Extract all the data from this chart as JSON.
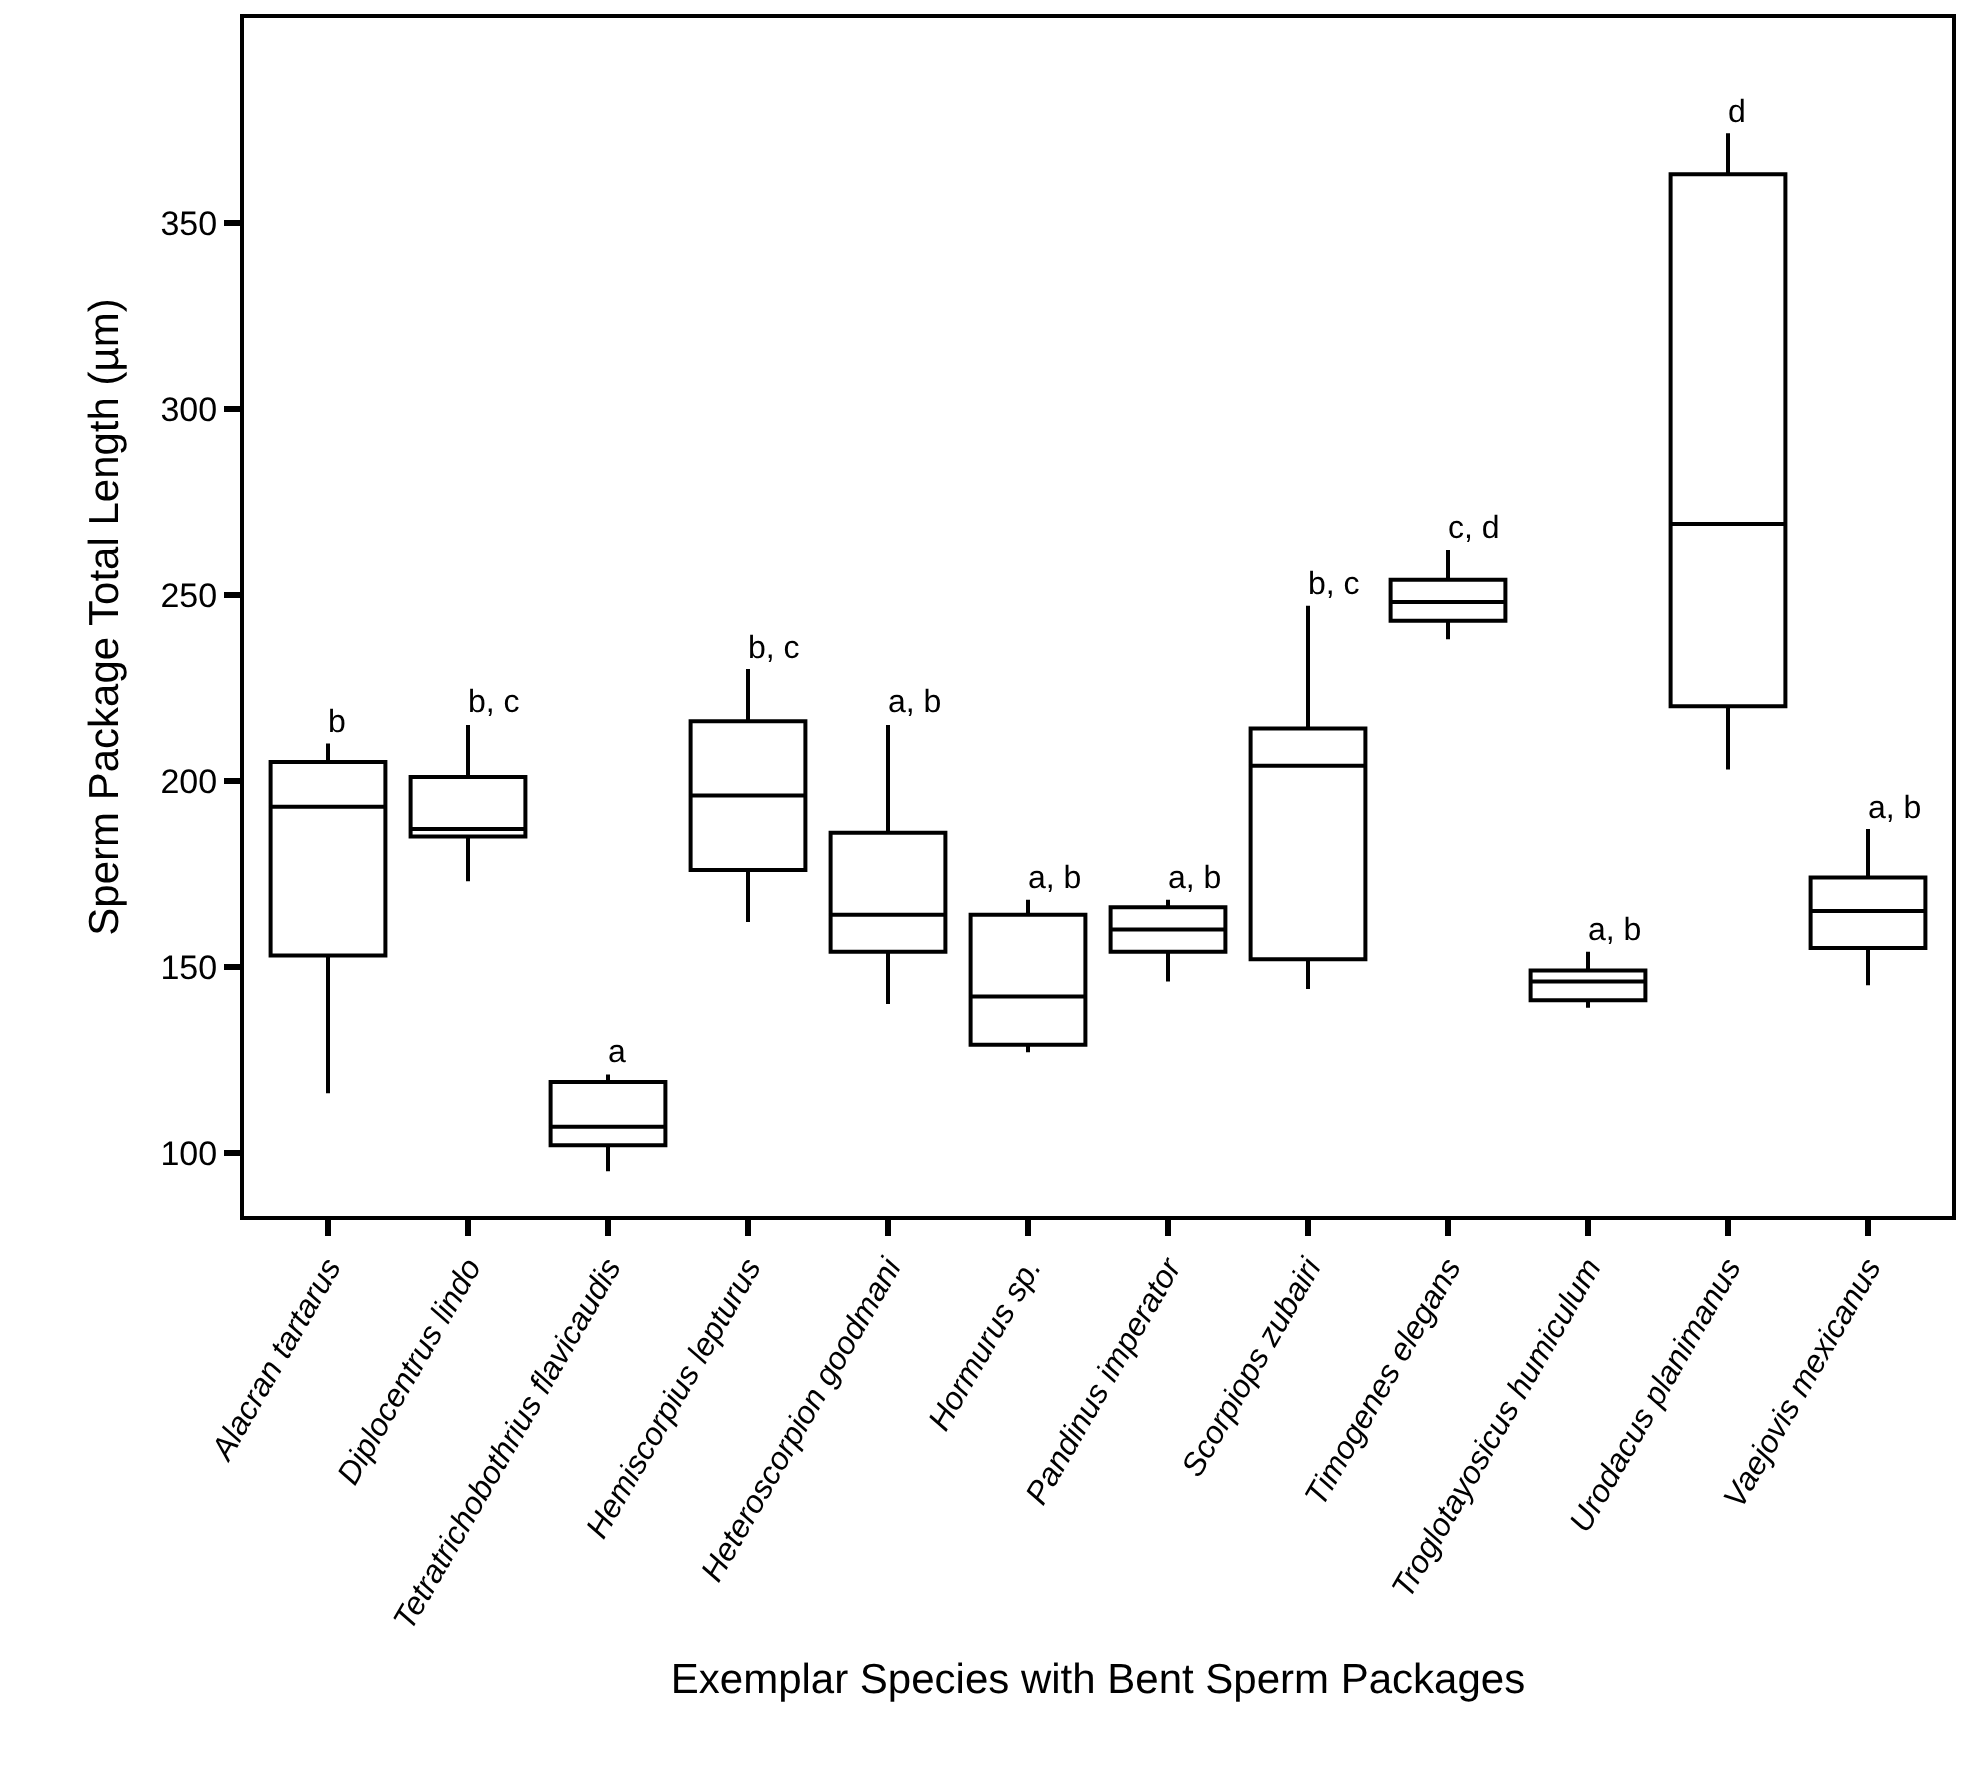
{
  "chart_data": {
    "type": "box",
    "xlabel": "Exemplar Species with Bent Sperm Packages",
    "ylabel": "Sperm Package Total Length (µm)",
    "categories": [
      "Alacran tartarus",
      "Diplocentrus lindo",
      "Tetratrichobothrius flavicaudis",
      "Hemiscorpius lepturus",
      "Heteroscorpion goodmani",
      "Hormurus sp.",
      "Pandinus imperator",
      "Scorpiops zubairi",
      "Timogenes elegans",
      "Troglotayosicus humiculum",
      "Urodacus planimanus",
      "Vaejovis mexicanus"
    ],
    "color": "#000000",
    "boxes": [
      {
        "low": 116,
        "q1": 153,
        "median": 193,
        "q3": 205,
        "high": 210
      },
      {
        "low": 173,
        "q1": 185,
        "median": 187,
        "q3": 201,
        "high": 215
      },
      {
        "low": 95,
        "q1": 102,
        "median": 107,
        "q3": 119,
        "high": 121
      },
      {
        "low": 162,
        "q1": 176,
        "median": 196,
        "q3": 216,
        "high": 230
      },
      {
        "low": 140,
        "q1": 154,
        "median": 164,
        "q3": 186,
        "high": 215
      },
      {
        "low": 127,
        "q1": 129,
        "median": 142,
        "q3": 164,
        "high": 168
      },
      {
        "low": 146,
        "q1": 154,
        "median": 160,
        "q3": 166,
        "high": 168
      },
      {
        "low": 144,
        "q1": 152,
        "median": 204,
        "q3": 214,
        "high": 247
      },
      {
        "low": 238,
        "q1": 243,
        "median": 248,
        "q3": 254,
        "high": 262
      },
      {
        "low": 139,
        "q1": 141,
        "median": 146,
        "q3": 149,
        "high": 154
      },
      {
        "low": 203,
        "q1": 220,
        "median": 269,
        "q3": 363,
        "high": 374
      },
      {
        "low": 145,
        "q1": 155,
        "median": 165,
        "q3": 174,
        "high": 187
      }
    ],
    "ylim": [
      83,
      405
    ],
    "yticks": [
      100,
      150,
      200,
      250,
      300,
      350
    ],
    "annotations": [
      {
        "text": "b",
        "x": "Alacran tartarus",
        "y": 210
      },
      {
        "text": "b, c",
        "x": "Diplocentrus lindo",
        "y": 215
      },
      {
        "text": "a",
        "x": "Tetratrichobothrius flavicaudis",
        "y": 121
      },
      {
        "text": "b, c",
        "x": "Hemiscorpius lepturus",
        "y": 230
      },
      {
        "text": "a, b",
        "x": "Heteroscorpion goodmani",
        "y": 215
      },
      {
        "text": "a, b",
        "x": "Hormurus sp.",
        "y": 168
      },
      {
        "text": "a, b",
        "x": "Pandinus imperator",
        "y": 168
      },
      {
        "text": "b, c",
        "x": "Scorpiops zubairi",
        "y": 247
      },
      {
        "text": "c, d",
        "x": "Timogenes elegans",
        "y": 262
      },
      {
        "text": "a, b",
        "x": "Troglotayosicus humiculum",
        "y": 154
      },
      {
        "text": "d",
        "x": "Urodacus planimanus",
        "y": 374
      },
      {
        "text": "a, b",
        "x": "Vaejovis mexicanus",
        "y": 187
      }
    ]
  }
}
